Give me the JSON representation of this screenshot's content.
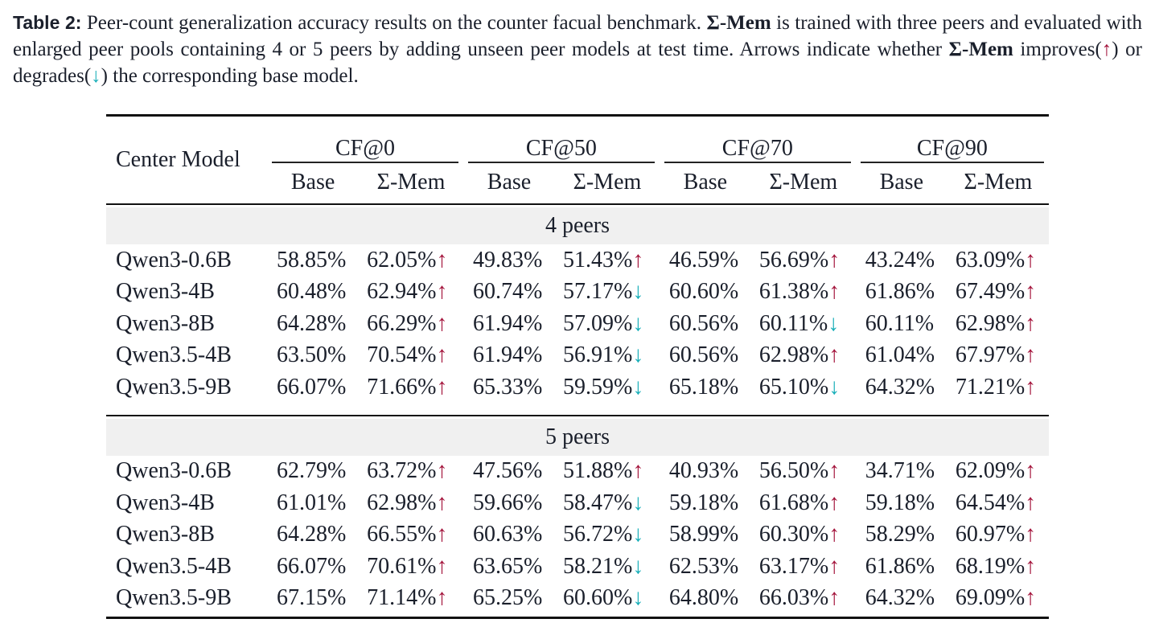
{
  "caption": {
    "label": "Table 2:",
    "part1": " Peer-count generalization accuracy results on the counter facual benchmark. ",
    "sigma_mem": "Σ-Mem",
    "part2": " is trained with three peers and evaluated with enlarged peer pools containing 4 or 5 peers by adding unseen peer models at test time. Arrows indicate whether ",
    "part3": " improves(",
    "up_arrow": "↑",
    "part4": ") or degrades(",
    "down_arrow": "↓",
    "part5": ") the corresponding base model."
  },
  "table": {
    "center_header": "Center Model",
    "groups": [
      "CF@0",
      "CF@50",
      "CF@70",
      "CF@90"
    ],
    "sub_base": "Base",
    "sub_mem": "Σ-Mem",
    "colors": {
      "up": "#a3123a",
      "down": "#17aeb8"
    },
    "sections": [
      {
        "title": "4 peers",
        "rows": [
          {
            "model": "Qwen3-0.6B",
            "cells": [
              [
                "58.85%",
                "62.05%",
                "up"
              ],
              [
                "49.83%",
                "51.43%",
                "up"
              ],
              [
                "46.59%",
                "56.69%",
                "up"
              ],
              [
                "43.24%",
                "63.09%",
                "up"
              ]
            ]
          },
          {
            "model": "Qwen3-4B",
            "cells": [
              [
                "60.48%",
                "62.94%",
                "up"
              ],
              [
                "60.74%",
                "57.17%",
                "down"
              ],
              [
                "60.60%",
                "61.38%",
                "up"
              ],
              [
                "61.86%",
                "67.49%",
                "up"
              ]
            ]
          },
          {
            "model": "Qwen3-8B",
            "cells": [
              [
                "64.28%",
                "66.29%",
                "up"
              ],
              [
                "61.94%",
                "57.09%",
                "down"
              ],
              [
                "60.56%",
                "60.11%",
                "down"
              ],
              [
                "60.11%",
                "62.98%",
                "up"
              ]
            ]
          },
          {
            "model": "Qwen3.5-4B",
            "cells": [
              [
                "63.50%",
                "70.54%",
                "up"
              ],
              [
                "61.94%",
                "56.91%",
                "down"
              ],
              [
                "60.56%",
                "62.98%",
                "up"
              ],
              [
                "61.04%",
                "67.97%",
                "up"
              ]
            ]
          },
          {
            "model": "Qwen3.5-9B",
            "cells": [
              [
                "66.07%",
                "71.66%",
                "up"
              ],
              [
                "65.33%",
                "59.59%",
                "down"
              ],
              [
                "65.18%",
                "65.10%",
                "down"
              ],
              [
                "64.32%",
                "71.21%",
                "up"
              ]
            ]
          }
        ]
      },
      {
        "title": "5 peers",
        "rows": [
          {
            "model": "Qwen3-0.6B",
            "cells": [
              [
                "62.79%",
                "63.72%",
                "up"
              ],
              [
                "47.56%",
                "51.88%",
                "up"
              ],
              [
                "40.93%",
                "56.50%",
                "up"
              ],
              [
                "34.71%",
                "62.09%",
                "up"
              ]
            ]
          },
          {
            "model": "Qwen3-4B",
            "cells": [
              [
                "61.01%",
                "62.98%",
                "up"
              ],
              [
                "59.66%",
                "58.47%",
                "down"
              ],
              [
                "59.18%",
                "61.68%",
                "up"
              ],
              [
                "59.18%",
                "64.54%",
                "up"
              ]
            ]
          },
          {
            "model": "Qwen3-8B",
            "cells": [
              [
                "64.28%",
                "66.55%",
                "up"
              ],
              [
                "60.63%",
                "56.72%",
                "down"
              ],
              [
                "58.99%",
                "60.30%",
                "up"
              ],
              [
                "58.29%",
                "60.97%",
                "up"
              ]
            ]
          },
          {
            "model": "Qwen3.5-4B",
            "cells": [
              [
                "66.07%",
                "70.61%",
                "up"
              ],
              [
                "63.65%",
                "58.21%",
                "down"
              ],
              [
                "62.53%",
                "63.17%",
                "up"
              ],
              [
                "61.86%",
                "68.19%",
                "up"
              ]
            ]
          },
          {
            "model": "Qwen3.5-9B",
            "cells": [
              [
                "67.15%",
                "71.14%",
                "up"
              ],
              [
                "65.25%",
                "60.60%",
                "down"
              ],
              [
                "64.80%",
                "66.03%",
                "up"
              ],
              [
                "64.32%",
                "69.09%",
                "up"
              ]
            ]
          }
        ]
      }
    ]
  }
}
